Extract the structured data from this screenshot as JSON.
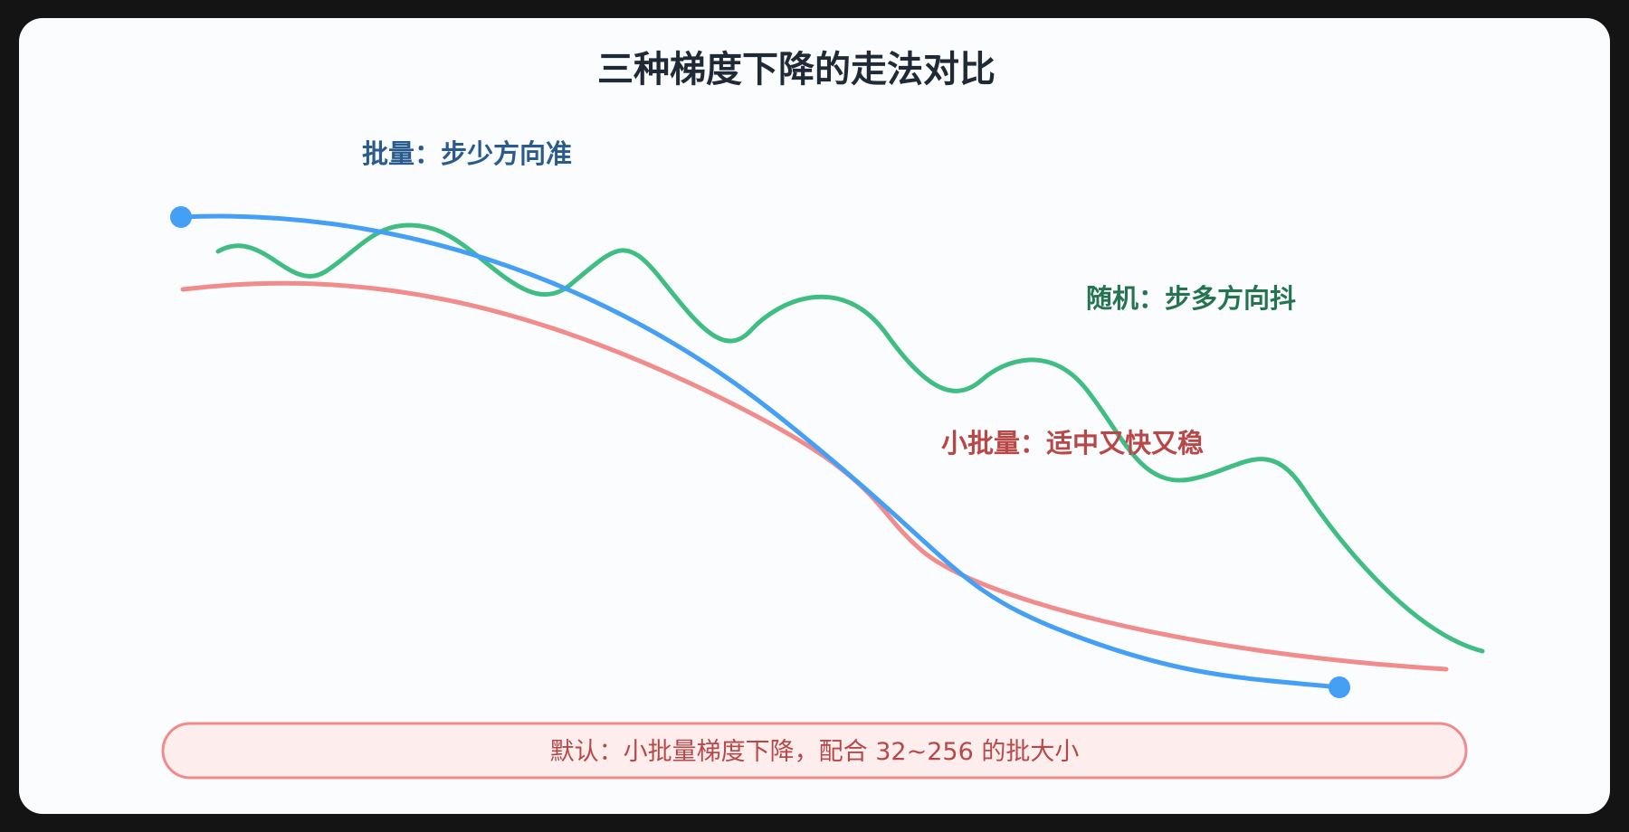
{
  "title": "三种梯度下降的走法对比",
  "labels": {
    "batch": "批量：步少方向准",
    "stochastic": "随机：步多方向抖",
    "minibatch": "小批量：适中又快又稳"
  },
  "footer": "默认：小批量梯度下降，配合 32~256 的批大小",
  "colors": {
    "batch": "#449ff5",
    "stochastic": "#40bd83",
    "minibatch": "#f08c8c",
    "background": "#fbfcfd",
    "frame": "#141414"
  }
}
